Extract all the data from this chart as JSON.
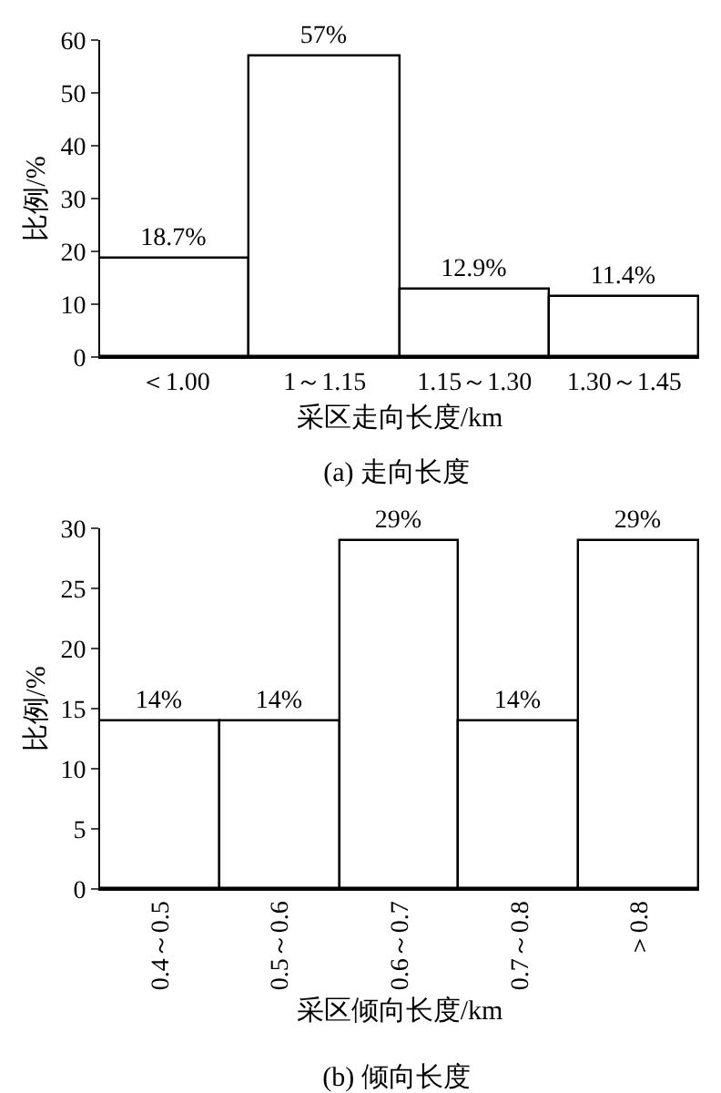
{
  "chart_data": [
    {
      "type": "bar",
      "title": "(a) 走向长度",
      "xlabel": "采区走向长度/km",
      "ylabel": "比例/%",
      "categories": [
        "＜1.00",
        "1～1.15",
        "1.15～1.30",
        "1.30～1.45"
      ],
      "values": [
        18.7,
        57,
        12.9,
        11.4
      ],
      "value_labels": [
        "18.7%",
        "57%",
        "12.9%",
        "11.4%"
      ],
      "color": "#ffffff",
      "ylim": [
        0,
        60
      ],
      "yticks": [
        0,
        10,
        20,
        30,
        40,
        50,
        60
      ]
    },
    {
      "type": "bar",
      "title": "(b) 倾向长度",
      "xlabel": "采区倾向长度/km",
      "ylabel": "比例/%",
      "categories": [
        "0.4～0.5",
        "0.5～0.6",
        "0.6～0.7",
        "0.7～0.8",
        "＞0.8"
      ],
      "values": [
        14,
        14,
        29,
        14,
        29
      ],
      "value_labels": [
        "14%",
        "14%",
        "29%",
        "14%",
        "29%"
      ],
      "color": "#ffffff",
      "ylim": [
        0,
        30
      ],
      "yticks": [
        0,
        5,
        10,
        15,
        20,
        25,
        30
      ]
    }
  ]
}
